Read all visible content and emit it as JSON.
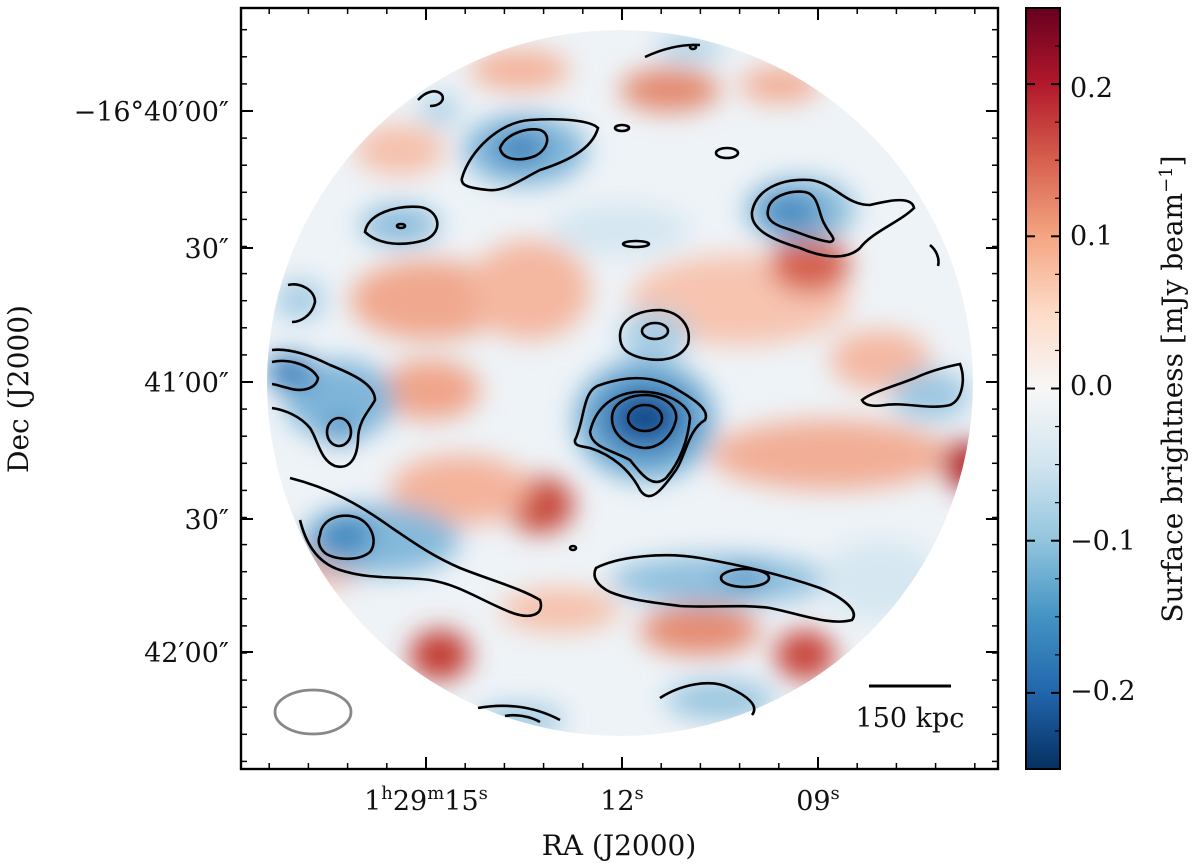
{
  "chart_data": {
    "type": "heatmap",
    "title": "",
    "xlabel": "RA (J2000)",
    "ylabel": "Dec (J2000)",
    "colorbar_label": "Surface brightness [mJy beam",
    "colorbar_label_exp": "−1",
    "colorbar_label_close": "]",
    "colormap": "RdBu_r",
    "color_low": "#053061",
    "color_mid": "#f7f7f7",
    "color_high": "#67001f",
    "colorbar_range": [
      -0.25,
      0.25
    ],
    "colorbar_ticks": [
      {
        "value": 0.2,
        "label": "0.2"
      },
      {
        "value": 0.1,
        "label": "0.1"
      },
      {
        "value": 0.0,
        "label": "0.0"
      },
      {
        "value": -0.1,
        "label": "−0.1"
      },
      {
        "value": -0.2,
        "label": "−0.2"
      }
    ],
    "x_ticks": [
      {
        "label_parts": [
          "1",
          "h",
          "29",
          "m",
          "15",
          "s"
        ]
      },
      {
        "label_parts": [
          "12",
          "s"
        ]
      },
      {
        "label_parts": [
          "09",
          "s"
        ]
      }
    ],
    "y_ticks": [
      {
        "label": "−16°40′00″"
      },
      {
        "label": "30″"
      },
      {
        "label": "41′00″"
      },
      {
        "label": "30″"
      },
      {
        "label": "42′00″"
      }
    ],
    "scale_bar_label": "150 kpc",
    "beam_shape": "ellipse",
    "features": [
      {
        "name": "central negative peak",
        "value": -0.24
      },
      {
        "name": "upper-left negative blob",
        "value": -0.17
      },
      {
        "name": "upper-right negative blob",
        "value": -0.15
      },
      {
        "name": "lower-left negative blob",
        "value": -0.16
      },
      {
        "name": "lower-right negative band",
        "value": -0.12
      },
      {
        "name": "right-edge positive peak",
        "value": 0.22
      },
      {
        "name": "lower-left positive peak",
        "value": 0.19
      },
      {
        "name": "lower-right positive peak",
        "value": 0.18
      }
    ]
  }
}
